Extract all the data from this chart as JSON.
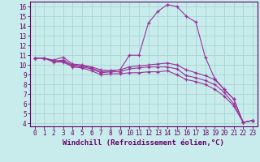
{
  "xlabel": "Windchill (Refroidissement éolien,°C)",
  "bg_color": "#c8ecec",
  "grid_color": "#aad4d4",
  "line_color": "#993399",
  "xlim": [
    -0.5,
    23.5
  ],
  "ylim": [
    3.7,
    16.5
  ],
  "xticks": [
    0,
    1,
    2,
    3,
    4,
    5,
    6,
    7,
    8,
    9,
    10,
    11,
    12,
    13,
    14,
    15,
    16,
    17,
    18,
    19,
    20,
    21,
    22,
    23
  ],
  "yticks": [
    4,
    5,
    6,
    7,
    8,
    9,
    10,
    11,
    12,
    13,
    14,
    15,
    16
  ],
  "lines": [
    {
      "x": [
        0,
        1,
        2,
        3,
        4,
        5,
        6,
        7,
        8,
        9,
        10,
        11,
        12,
        13,
        14,
        15,
        16,
        17,
        18,
        19,
        20,
        21,
        22,
        23
      ],
      "y": [
        10.7,
        10.7,
        10.5,
        10.8,
        10.1,
        10.0,
        9.8,
        9.5,
        9.4,
        9.5,
        11.0,
        11.0,
        14.3,
        15.5,
        16.2,
        16.0,
        15.0,
        14.4,
        10.8,
        8.6,
        7.5,
        6.5,
        4.1,
        4.3
      ]
    },
    {
      "x": [
        0,
        1,
        2,
        3,
        4,
        5,
        6,
        7,
        8,
        9,
        10,
        11,
        12,
        13,
        14,
        15,
        16,
        17,
        18,
        19,
        20,
        21,
        22,
        23
      ],
      "y": [
        10.7,
        10.7,
        10.4,
        10.5,
        10.0,
        9.9,
        9.7,
        9.3,
        9.4,
        9.5,
        9.8,
        9.9,
        10.0,
        10.1,
        10.2,
        10.0,
        9.5,
        9.2,
        8.9,
        8.5,
        7.5,
        6.5,
        4.1,
        4.3
      ]
    },
    {
      "x": [
        0,
        1,
        2,
        3,
        4,
        5,
        6,
        7,
        8,
        9,
        10,
        11,
        12,
        13,
        14,
        15,
        16,
        17,
        18,
        19,
        20,
        21,
        22,
        23
      ],
      "y": [
        10.7,
        10.7,
        10.4,
        10.4,
        9.9,
        9.8,
        9.6,
        9.2,
        9.3,
        9.3,
        9.6,
        9.7,
        9.8,
        9.8,
        9.8,
        9.6,
        8.9,
        8.7,
        8.4,
        8.0,
        7.2,
        6.0,
        4.1,
        4.3
      ]
    },
    {
      "x": [
        0,
        1,
        2,
        3,
        4,
        5,
        6,
        7,
        8,
        9,
        10,
        11,
        12,
        13,
        14,
        15,
        16,
        17,
        18,
        19,
        20,
        21,
        22,
        23
      ],
      "y": [
        10.7,
        10.7,
        10.3,
        10.3,
        9.8,
        9.7,
        9.4,
        9.0,
        9.1,
        9.1,
        9.2,
        9.2,
        9.3,
        9.3,
        9.4,
        9.0,
        8.5,
        8.3,
        8.0,
        7.5,
        6.8,
        5.8,
        4.1,
        4.3
      ]
    }
  ],
  "xlabel_fontsize": 6.5,
  "tick_fontsize": 5.5
}
